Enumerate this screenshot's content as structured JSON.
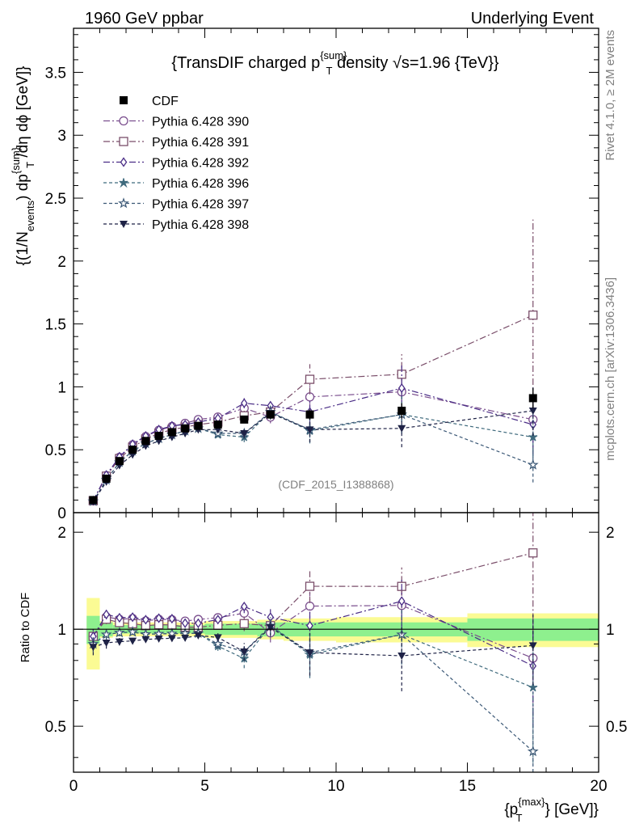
{
  "header": {
    "left": "1960 GeV ppbar",
    "right": "Underlying Event"
  },
  "side_labels": {
    "rivet": "Rivet 4.1.0, ≥ 2M events",
    "mcplots": "mcplots.cern.ch [arXiv:1306.3436]"
  },
  "chart_data": {
    "type": "line",
    "title": "{TransDIF charged p^{sum}_T density √s=1.96 {TeV}}",
    "title_parts": {
      "main": "{TransDIF charged p",
      "sup": "{sum}",
      "sub": "T",
      "rest": " density ",
      "sqrt": "√",
      "tail": "s=1.96 {TeV}}"
    },
    "analysis_id": "(CDF_2015_I1388868)",
    "xlabel": "{p_T^{max}} [GeV]}",
    "xlabel_parts": {
      "open": "{p",
      "sup": "{max}",
      "sub": "T",
      "close": "} [GeV]}"
    },
    "ylabel": "{(1/N_{events}) dp^{sum}_T /dη  dϕ [GeV]}",
    "ylabel_parts": {
      "a": "{(1/N",
      "a_sub": "events",
      "b": ") dp",
      "b_sup": "{sum}",
      "b_sub": "T",
      "c": " /dη  dϕ [GeV]}"
    },
    "ratio_ylabel": "Ratio to CDF",
    "xlim": [
      0,
      20
    ],
    "ylim": [
      0,
      3.85
    ],
    "ratio_ylim": [
      0.36,
      2.3
    ],
    "x_ticks": [
      0,
      5,
      10,
      15,
      20
    ],
    "x_tick_labels": [
      "0",
      "5",
      "10",
      "15",
      "20"
    ],
    "y_ticks": [
      0,
      0.5,
      1,
      1.5,
      2,
      2.5,
      3,
      3.5
    ],
    "y_tick_labels": [
      "0",
      "0.5",
      "1",
      "1.5",
      "2",
      "2.5",
      "3",
      "3.5"
    ],
    "ratio_y_ticks": [
      0.5,
      1,
      2
    ],
    "ratio_y_tick_labels": [
      "0.5",
      "1",
      "2"
    ],
    "x": [
      0.75,
      1.25,
      1.75,
      2.25,
      2.75,
      3.25,
      3.75,
      4.25,
      4.75,
      5.5,
      6.5,
      7.5,
      9.0,
      12.5,
      17.5
    ],
    "bin_edges": [
      0.5,
      1.0,
      1.5,
      2.0,
      2.5,
      3.0,
      3.5,
      4.0,
      4.5,
      5.0,
      6.0,
      7.0,
      8.0,
      10.0,
      15.0,
      20.0
    ],
    "data": {
      "name": "CDF",
      "values": [
        0.1,
        0.27,
        0.41,
        0.5,
        0.57,
        0.61,
        0.64,
        0.67,
        0.69,
        0.7,
        0.74,
        0.78,
        0.78,
        0.81,
        0.91
      ],
      "errors": [
        0.01,
        0.01,
        0.01,
        0.01,
        0.01,
        0.01,
        0.01,
        0.01,
        0.02,
        0.02,
        0.02,
        0.03,
        0.04,
        0.06,
        0.08
      ],
      "band_stat": [
        0.1,
        0.05,
        0.03,
        0.03,
        0.03,
        0.03,
        0.03,
        0.03,
        0.03,
        0.04,
        0.04,
        0.05,
        0.05,
        0.05,
        0.08
      ],
      "band_total": [
        0.25,
        0.06,
        0.05,
        0.05,
        0.05,
        0.05,
        0.05,
        0.05,
        0.05,
        0.06,
        0.06,
        0.07,
        0.08,
        0.09,
        0.12
      ]
    },
    "series": [
      {
        "name": "Pythia 6.428 390",
        "color": "#7b4f8e",
        "marker": "circle",
        "dash": "8,3,2,3",
        "values": [
          0.095,
          0.295,
          0.44,
          0.54,
          0.605,
          0.655,
          0.685,
          0.71,
          0.74,
          0.76,
          0.83,
          0.76,
          0.92,
          0.96,
          0.74
        ],
        "errors": [
          0.005,
          0.01,
          0.01,
          0.01,
          0.01,
          0.01,
          0.01,
          0.015,
          0.015,
          0.02,
          0.04,
          0.05,
          0.1,
          0.18,
          0.25
        ]
      },
      {
        "name": "Pythia 6.428 391",
        "color": "#7a4e6a",
        "marker": "square",
        "dash": "8,3,2,3",
        "values": [
          0.095,
          0.29,
          0.43,
          0.52,
          0.585,
          0.63,
          0.66,
          0.68,
          0.7,
          0.72,
          0.77,
          0.8,
          1.06,
          1.1,
          1.57
        ],
        "errors": [
          0.005,
          0.01,
          0.01,
          0.01,
          0.01,
          0.01,
          0.01,
          0.015,
          0.015,
          0.02,
          0.04,
          0.05,
          0.12,
          0.16,
          0.76
        ]
      },
      {
        "name": "Pythia 6.428 392",
        "color": "#4a2d86",
        "marker": "diamond",
        "dash": "8,3,2,3",
        "values": [
          0.095,
          0.3,
          0.445,
          0.545,
          0.61,
          0.66,
          0.69,
          0.7,
          0.72,
          0.75,
          0.87,
          0.85,
          0.8,
          0.99,
          0.7
        ],
        "errors": [
          0.005,
          0.01,
          0.01,
          0.01,
          0.01,
          0.01,
          0.01,
          0.015,
          0.015,
          0.02,
          0.04,
          0.05,
          0.1,
          0.18,
          0.25
        ]
      },
      {
        "name": "Pythia 6.428 396",
        "color": "#3f6a7d",
        "marker": "star6",
        "dash": "4,3",
        "values": [
          0.09,
          0.26,
          0.4,
          0.49,
          0.55,
          0.59,
          0.62,
          0.65,
          0.67,
          0.62,
          0.6,
          0.8,
          0.65,
          0.78,
          0.6
        ],
        "errors": [
          0.005,
          0.01,
          0.01,
          0.01,
          0.01,
          0.01,
          0.01,
          0.015,
          0.015,
          0.02,
          0.04,
          0.05,
          0.1,
          0.15,
          0.25
        ]
      },
      {
        "name": "Pythia 6.428 397",
        "color": "#3b5876",
        "marker": "star5",
        "dash": "4,3",
        "values": [
          0.09,
          0.26,
          0.4,
          0.49,
          0.55,
          0.59,
          0.62,
          0.65,
          0.67,
          0.63,
          0.63,
          0.8,
          0.66,
          0.78,
          0.38
        ],
        "errors": [
          0.005,
          0.01,
          0.01,
          0.01,
          0.01,
          0.01,
          0.01,
          0.015,
          0.015,
          0.02,
          0.04,
          0.05,
          0.1,
          0.15,
          0.14
        ]
      },
      {
        "name": "Pythia 6.428 398",
        "color": "#1e2246",
        "marker": "tri-down",
        "dash": "4,3",
        "values": [
          0.088,
          0.245,
          0.375,
          0.46,
          0.53,
          0.57,
          0.6,
          0.63,
          0.66,
          0.66,
          0.63,
          0.79,
          0.66,
          0.67,
          0.81
        ],
        "errors": [
          0.005,
          0.01,
          0.01,
          0.01,
          0.01,
          0.01,
          0.01,
          0.015,
          0.015,
          0.02,
          0.04,
          0.05,
          0.1,
          0.15,
          0.2
        ]
      }
    ]
  }
}
